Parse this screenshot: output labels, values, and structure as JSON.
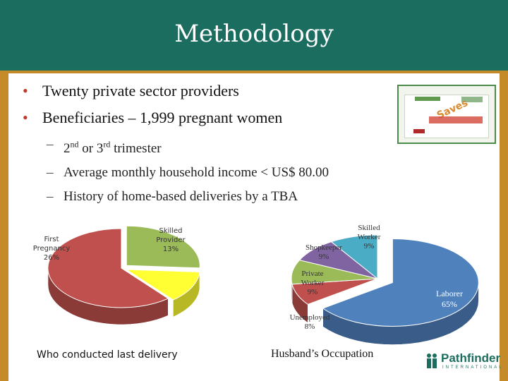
{
  "slide": {
    "title": "Methodology",
    "bullets": [
      "Twenty private sector providers",
      "Beneficiaries – 1,999 pregnant women"
    ],
    "subbullets": [
      {
        "pre": "2",
        "sup1": "nd",
        "mid": " or 3",
        "sup2": "rd",
        "post": " trimester"
      },
      {
        "text": "Average monthly household income < US$ 80.00"
      },
      {
        "text": "History of home-based deliveries by a TBA"
      }
    ]
  },
  "image": {
    "saves_word": "Saves"
  },
  "chart_data": [
    {
      "type": "pie",
      "title": "Who conducted last delivery",
      "slices": [
        {
          "label": "First Pregnancy",
          "value": 26,
          "label_text": "26%",
          "color": "#9bbb59"
        },
        {
          "label": "Skilled Provider",
          "value": 13,
          "label_text": "13%",
          "color": "#ffff33"
        },
        {
          "label": "",
          "value": 61,
          "label_text": "",
          "color": "#c0504d"
        }
      ]
    },
    {
      "type": "pie",
      "title": "Husband’s Occupation",
      "slices": [
        {
          "label": "Laborer",
          "value": 65,
          "label_text": "65%",
          "color": "#4f81bd"
        },
        {
          "label": "Unemployed",
          "value": 8,
          "label_text": "8%",
          "color": "#c0504d"
        },
        {
          "label": "Private Worker",
          "value": 9,
          "label_text": "9%",
          "color": "#9bbb59"
        },
        {
          "label": "Shopkeeper",
          "value": 9,
          "label_text": "9%",
          "color": "#8064a2"
        },
        {
          "label": "Skilled Worker",
          "value": 9,
          "label_text": "9%",
          "color": "#4bacc6"
        }
      ]
    }
  ],
  "logo": {
    "name": "Pathfinder",
    "subtitle": "INTERNATIONAL"
  }
}
